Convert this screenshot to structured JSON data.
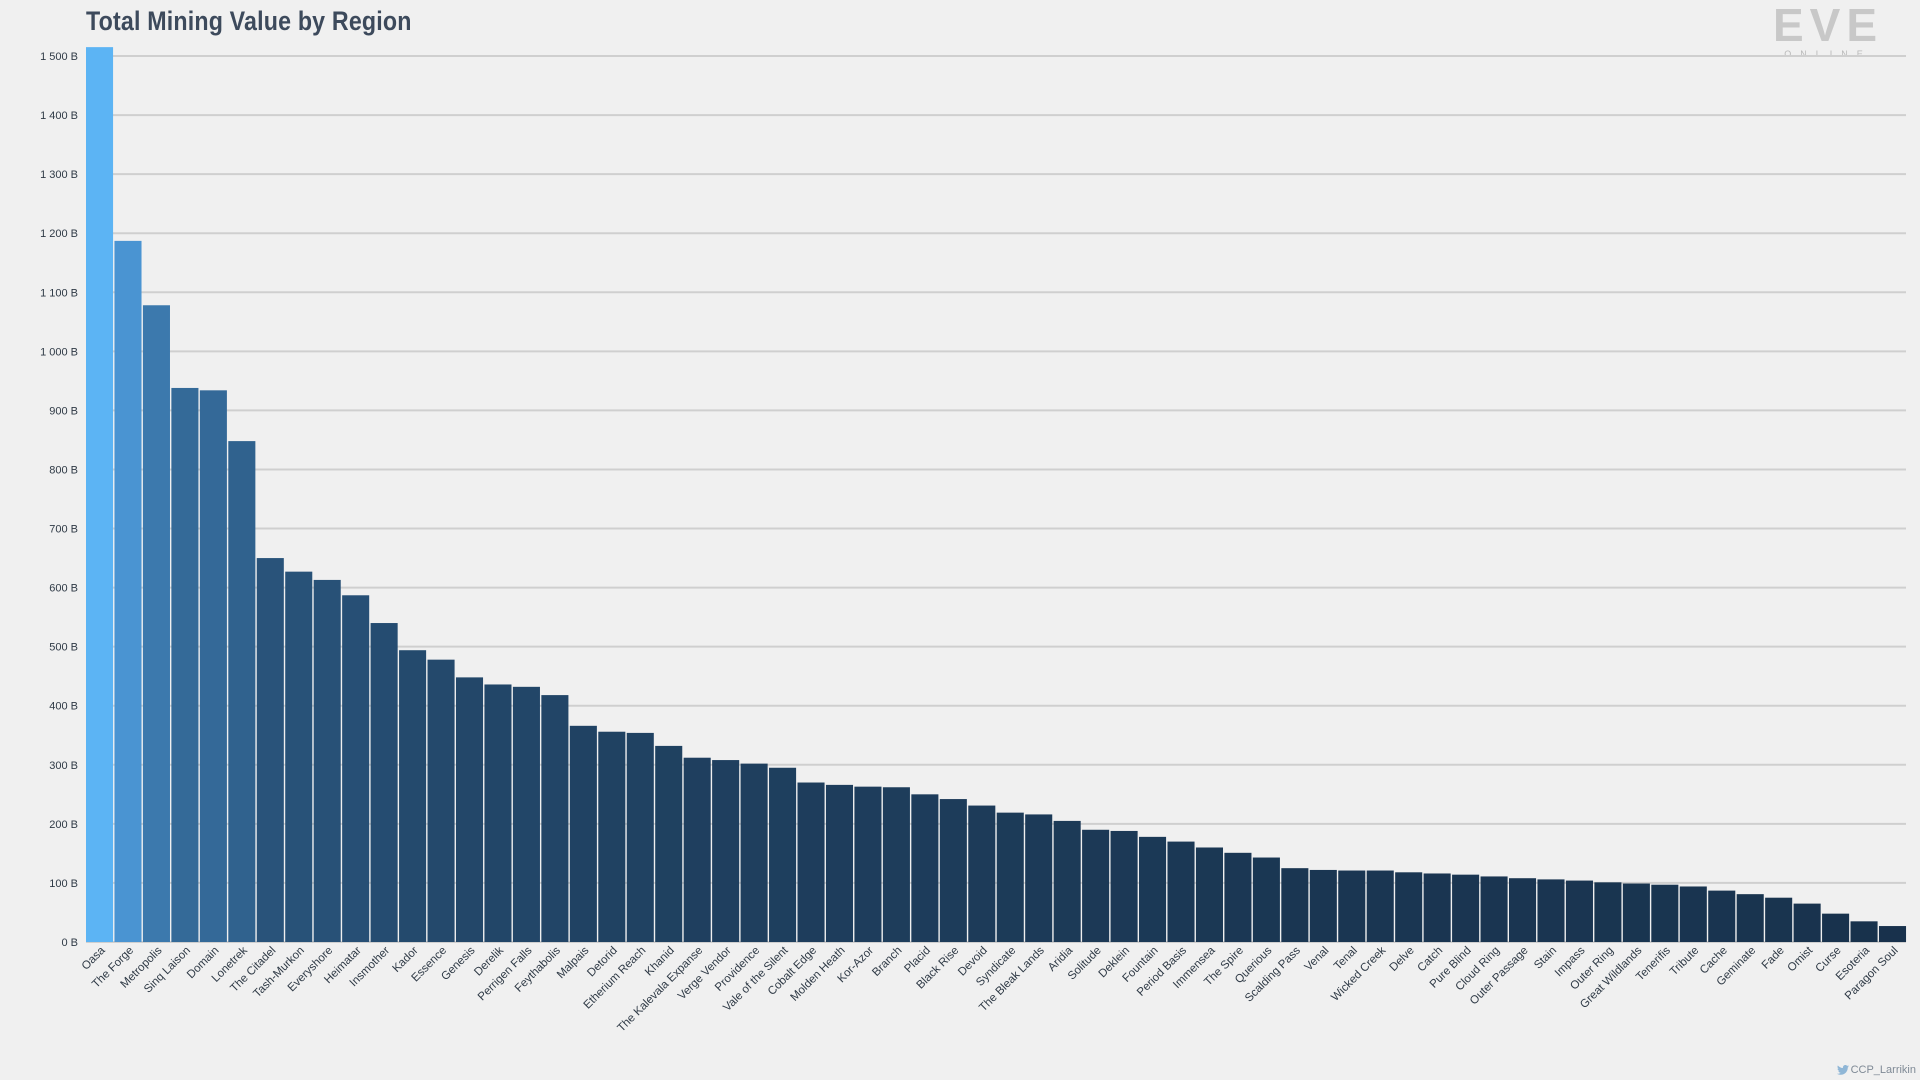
{
  "chart_data": {
    "type": "bar",
    "title": "Total Mining Value by Region",
    "xlabel": "",
    "ylabel": "",
    "ylim": [
      0,
      1500
    ],
    "yticks": [
      0,
      100,
      200,
      300,
      400,
      500,
      600,
      700,
      800,
      900,
      1000,
      1100,
      1200,
      1300,
      1400,
      1500
    ],
    "ytick_labels": [
      "0 B",
      "100 B",
      "200 B",
      "300 B",
      "400 B",
      "500 B",
      "600 B",
      "700 B",
      "800 B",
      "900 B",
      "1 000 B",
      "1 100 B",
      "1 200 B",
      "1 300 B",
      "1 400 B",
      "1 500 B"
    ],
    "grid": true,
    "legend": "none",
    "categories": [
      "Oasa",
      "The Forge",
      "Metropolis",
      "Sinq Laison",
      "Domain",
      "Lonetrek",
      "The Citadel",
      "Tash-Murkon",
      "Everyshore",
      "Heimatar",
      "Insmother",
      "Kador",
      "Essence",
      "Genesis",
      "Derelik",
      "Perrigen Falls",
      "Feythabolis",
      "Malpais",
      "Detorid",
      "Etherium Reach",
      "Khanid",
      "The Kalevala Expanse",
      "Verge Vendor",
      "Providence",
      "Vale of the Silent",
      "Cobalt Edge",
      "Molden Heath",
      "Kor-Azor",
      "Branch",
      "Placid",
      "Black Rise",
      "Devoid",
      "Syndicate",
      "The Bleak Lands",
      "Aridia",
      "Solitude",
      "Deklein",
      "Fountain",
      "Period Basis",
      "Immensea",
      "The Spire",
      "Querious",
      "Scalding Pass",
      "Venal",
      "Tenal",
      "Wicked Creek",
      "Delve",
      "Catch",
      "Pure Blind",
      "Cloud Ring",
      "Outer Passage",
      "Stain",
      "Impass",
      "Outer Ring",
      "Great Wildlands",
      "Tenerifis",
      "Tribute",
      "Cache",
      "Geminate",
      "Fade",
      "Omist",
      "Curse",
      "Esoteria",
      "Paragon Soul"
    ],
    "values": [
      1515,
      1187,
      1078,
      938,
      934,
      848,
      650,
      627,
      613,
      587,
      540,
      494,
      478,
      448,
      436,
      432,
      418,
      366,
      356,
      354,
      332,
      312,
      308,
      302,
      295,
      270,
      266,
      263,
      262,
      250,
      242,
      231,
      219,
      216,
      205,
      190,
      188,
      178,
      170,
      160,
      151,
      143,
      125,
      122,
      121,
      121,
      118,
      116,
      114,
      111,
      108,
      106,
      104,
      101,
      99,
      97,
      94,
      87,
      81,
      75,
      65,
      48,
      35,
      27
    ]
  },
  "credit": {
    "handle": "CCP_Larrikin",
    "icon": "twitter-icon"
  },
  "logo": {
    "main": "EVE",
    "sub": "ONLINE"
  },
  "colors": {
    "background": "#f0f0f0",
    "gridline": "#cfcfcf",
    "bar_top": "#5cb4f4",
    "bar_high": "#4a94d2",
    "bar_low": "#17304a",
    "title": "#3d4a5c",
    "tick_label": "#2f3a46"
  }
}
